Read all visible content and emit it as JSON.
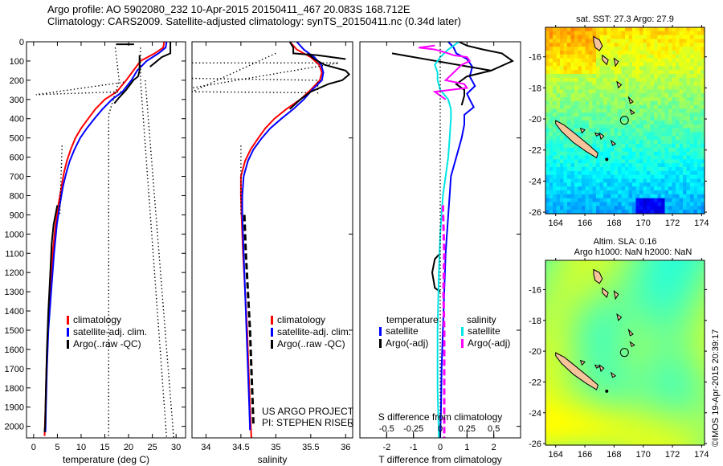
{
  "header": {
    "line1": "Argo profile: AO 5902080_232 10-Apr-2015 20150411_467 20.083S 168.712E",
    "line2": "Climatology: CARS2009. Satellite-adjusted climatology: synTS_20150411.nc (0.34d later)"
  },
  "colors": {
    "climatology": "#ff0000",
    "satellite": "#0000ff",
    "argo": "#000000",
    "sal_satellite": "#00e5e5",
    "sal_argo": "#ff00ff",
    "land": "#f5c49b"
  },
  "chart_data": [
    {
      "id": "temperature",
      "type": "line",
      "xlabel": "temperature (deg C)",
      "ylabel": "",
      "xlim": [
        -1.5,
        32
      ],
      "ylim": [
        2060,
        0
      ],
      "xticks": [
        0,
        5,
        10,
        15,
        20,
        25,
        30
      ],
      "yticks": [
        0,
        100,
        200,
        300,
        400,
        500,
        600,
        700,
        800,
        900,
        1000,
        1100,
        1200,
        1300,
        1400,
        1500,
        1600,
        1700,
        1800,
        1900,
        2000
      ],
      "legend": {
        "placement": "center",
        "entries": [
          "climatology",
          "satellite-adj. clim.",
          "Argo(..raw -QC)"
        ]
      },
      "series": [
        {
          "name": "climatology",
          "style": "solid",
          "color": "#ff0000",
          "depth": [
            0,
            30,
            60,
            100,
            150,
            200,
            260,
            300,
            350,
            400,
            450,
            500,
            560,
            620,
            680,
            750,
            850,
            950,
            1100,
            1300,
            1500,
            1700,
            1900,
            2050
          ],
          "value": [
            27.5,
            27.3,
            25.5,
            22.5,
            21.0,
            19.5,
            17.5,
            15.0,
            13.0,
            11.5,
            10.0,
            8.8,
            7.8,
            7.0,
            6.4,
            5.9,
            5.2,
            4.6,
            4.0,
            3.4,
            3.0,
            2.7,
            2.5,
            2.3
          ]
        },
        {
          "name": "satellite-adj. clim.",
          "style": "solid",
          "color": "#0000ff",
          "depth": [
            0,
            30,
            60,
            100,
            150,
            200,
            260,
            300,
            350,
            400,
            450,
            500,
            560,
            620,
            680,
            750,
            850,
            950,
            1100,
            1300,
            1500,
            1700,
            1900,
            2030
          ],
          "value": [
            28.0,
            27.8,
            26.3,
            23.8,
            21.8,
            20.6,
            18.7,
            16.5,
            14.5,
            12.8,
            11.2,
            9.8,
            8.6,
            7.6,
            6.9,
            6.2,
            5.5,
            4.9,
            4.3,
            3.7,
            3.1,
            2.8,
            2.6,
            2.5
          ]
        },
        {
          "name": "Argo(..raw -QC)",
          "style": "solid",
          "color": "#000000",
          "depth": [
            0,
            60,
            80,
            110,
            130
          ],
          "value": [
            28.8,
            28.8,
            27.0,
            25.5,
            24.5
          ]
        },
        {
          "name": "Argo(..raw -QC) upper",
          "style": "solid",
          "color": "#000000",
          "depth": [
            10,
            13,
            13,
            10
          ],
          "value": [
            17.5,
            17.5,
            21.0,
            21.0
          ]
        },
        {
          "name": "Argo(..raw -QC) 100-200",
          "style": "solid",
          "color": "#000000",
          "depth": [
            70,
            150,
            180,
            200,
            250,
            290,
            320
          ],
          "value": [
            22.3,
            22.3,
            22.0,
            21.0,
            19.5,
            18.0,
            17.0
          ]
        },
        {
          "name": "Argo(..raw -QC) deep",
          "style": "solid",
          "color": "#000000",
          "depth": [
            850,
            950,
            1050,
            1200,
            1400,
            1600,
            1800,
            2000,
            2030
          ],
          "value": [
            5.0,
            4.2,
            3.8,
            3.5,
            3.1,
            2.8,
            2.6,
            2.4,
            2.3
          ]
        },
        {
          "name": "Argo dotted a",
          "style": "dotted",
          "color": "#000000",
          "depth": [
            30,
            200,
            380,
            2060
          ],
          "value": [
            17.2,
            18.0,
            15.8,
            15.8
          ]
        },
        {
          "name": "Argo dotted b",
          "style": "dotted",
          "color": "#000000",
          "depth": [
            30,
            200,
            2060
          ],
          "value": [
            22.5,
            22.5,
            28.0
          ]
        },
        {
          "name": "Argo dotted c",
          "style": "dotted",
          "color": "#000000",
          "depth": [
            200,
            2060
          ],
          "value": [
            23.5,
            29.5
          ]
        },
        {
          "name": "Argo dotted spike",
          "style": "dotted",
          "color": "#000000",
          "depth": [
            210,
            275,
            260
          ],
          "value": [
            19.0,
            0.5,
            18.5
          ]
        },
        {
          "name": "Argo dotted mid",
          "style": "dotted",
          "color": "#000000",
          "depth": [
            540,
            900
          ],
          "value": [
            6.0,
            5.5
          ]
        }
      ]
    },
    {
      "id": "salinity",
      "type": "line",
      "xlabel": "salinity",
      "ylabel": "",
      "xlim": [
        33.8,
        36.1
      ],
      "ylim": [
        2060,
        0
      ],
      "xticks": [
        34,
        34.5,
        35,
        35.5,
        36
      ],
      "xtick_labels": [
        "34",
        "34.5",
        "35",
        "35.5",
        "36"
      ],
      "legend": {
        "placement": "center",
        "entries": [
          "climatology",
          "satellite-adj. clim.",
          "Argo(..raw -QC)"
        ]
      },
      "annotation": [
        "US ARGO PROJECT",
        "PI: STEPHEN RISER"
      ],
      "series": [
        {
          "name": "climatology",
          "style": "solid",
          "color": "#ff0000",
          "depth": [
            0,
            40,
            80,
            120,
            160,
            200,
            250,
            300,
            350,
            400,
            450,
            500,
            560,
            620,
            700,
            800,
            900,
            1100,
            1300,
            1500,
            1700,
            1900,
            2060
          ],
          "value": [
            35.2,
            35.3,
            35.5,
            35.62,
            35.66,
            35.63,
            35.5,
            35.35,
            35.15,
            34.98,
            34.85,
            34.75,
            34.64,
            34.56,
            34.5,
            34.5,
            34.51,
            34.53,
            34.56,
            34.59,
            34.61,
            34.63,
            34.65
          ]
        },
        {
          "name": "satellite-adj. clim.",
          "style": "solid",
          "color": "#0000ff",
          "depth": [
            0,
            40,
            80,
            120,
            160,
            200,
            250,
            300,
            350,
            400,
            450,
            500,
            560,
            620,
            700,
            800,
            900,
            1100,
            1300,
            1500,
            1700,
            1900,
            2020
          ],
          "value": [
            35.3,
            35.4,
            35.55,
            35.65,
            35.68,
            35.66,
            35.52,
            35.4,
            35.25,
            35.08,
            34.92,
            34.8,
            34.68,
            34.6,
            34.54,
            34.52,
            34.52,
            34.54,
            34.56,
            34.58,
            34.6,
            34.62,
            34.63
          ]
        },
        {
          "name": "Argo(..raw -QC) top",
          "style": "solid",
          "color": "#000000",
          "depth": [
            0,
            30,
            60,
            70,
            90
          ],
          "value": [
            35.2,
            35.25,
            35.25,
            35.6,
            36.0
          ]
        },
        {
          "name": "Argo(..raw -QC) 100-260",
          "style": "solid",
          "color": "#000000",
          "depth": [
            60,
            90,
            120,
            150,
            170,
            200,
            220,
            260,
            300,
            350
          ],
          "value": [
            35.45,
            35.55,
            35.7,
            36.0,
            36.05,
            35.95,
            35.75,
            35.5,
            35.35,
            35.2
          ]
        },
        {
          "name": "Argo(..raw -QC) deep",
          "style": "dashed",
          "color": "#000000",
          "depth": [
            900,
            1100,
            1300,
            1500,
            1700,
            1900,
            2000
          ],
          "value": [
            34.55,
            34.57,
            34.6,
            34.63,
            34.65,
            34.67,
            34.68
          ]
        },
        {
          "name": "Argo dotted a",
          "style": "dotted",
          "color": "#000000",
          "depth": [
            110,
            110,
            240
          ],
          "value": [
            33.8,
            35.9,
            33.8
          ]
        },
        {
          "name": "Argo dotted b",
          "style": "dotted",
          "color": "#000000",
          "depth": [
            60,
            260,
            265
          ],
          "value": [
            35.0,
            33.8,
            35.5
          ]
        },
        {
          "name": "Argo dotted c",
          "style": "dotted",
          "color": "#000000",
          "depth": [
            190,
            200,
            270
          ],
          "value": [
            33.8,
            35.6,
            35.6
          ]
        },
        {
          "name": "Argo dotted mid",
          "style": "dotted",
          "color": "#000000",
          "depth": [
            540,
            900
          ],
          "value": [
            34.5,
            34.5
          ]
        }
      ]
    },
    {
      "id": "difference",
      "type": "line",
      "xlabel": "T difference from climatology",
      "xlabel_top": "S difference from climatology",
      "xlim": [
        -3,
        3
      ],
      "ylim": [
        2060,
        0
      ],
      "xticks": [
        -2,
        -1,
        0,
        1,
        2
      ],
      "xticks_S": [
        -0.5,
        -0.25,
        0,
        0.25,
        0.5
      ],
      "xtick_labels_S": [
        "-0.5",
        "-0.25",
        "0",
        "0.25",
        "0.5"
      ],
      "legend": {
        "placement": "lower-center",
        "temperature_header": "temperature",
        "salinity_header": "salinity",
        "entries": [
          "satellite",
          "Argo(-adj)",
          "satellite",
          "Argo(-adj)"
        ]
      },
      "series": [
        {
          "name": "T satellite",
          "style": "solid",
          "color": "#0000ff",
          "depth": [
            0,
            30,
            60,
            90,
            130,
            180,
            230,
            270,
            300,
            340,
            380,
            430,
            500,
            600,
            700,
            800,
            900,
            1100,
            1300,
            1500,
            1700,
            1900,
            2060
          ],
          "value": [
            0.3,
            0.5,
            0.6,
            1.0,
            1.2,
            1.1,
            1.3,
            1.0,
            1.1,
            1.25,
            0.9,
            0.9,
            0.8,
            0.6,
            0.4,
            0.35,
            0.3,
            0.2,
            0.15,
            0.1,
            0.05,
            0.03,
            0.0
          ]
        },
        {
          "name": "T Argo",
          "style": "solid",
          "color": "#000000",
          "depth": [
            0,
            20,
            40,
            60,
            80,
            100,
            150,
            180,
            220,
            250,
            280,
            330
          ],
          "value": [
            0.7,
            1.0,
            1.6,
            2.3,
            2.5,
            2.7,
            1.9,
            1.0,
            0.6,
            0.9,
            0.9,
            0.8
          ]
        },
        {
          "name": "T Argo slope",
          "style": "solid",
          "color": "#000000",
          "depth": [
            60,
            150
          ],
          "value": [
            -1.8,
            1.9
          ]
        },
        {
          "name": "T Argo deep",
          "style": "solid",
          "color": "#000000",
          "depth": [
            1100,
            1130,
            1200,
            1280,
            1300
          ],
          "value": [
            0.0,
            -0.2,
            -0.3,
            -0.2,
            0.0
          ]
        },
        {
          "name": "S satellite",
          "style": "solid",
          "color": "#00e5e5",
          "depth": [
            0,
            40,
            80,
            120,
            160,
            200,
            250,
            300,
            350,
            400,
            500,
            600,
            700,
            800,
            1000,
            1200,
            1500,
            1800,
            2060
          ],
          "value": [
            0.7,
            0.3,
            0.0,
            -0.2,
            -0.1,
            -0.1,
            0.0,
            0.3,
            0.4,
            0.4,
            0.35,
            0.3,
            0.2,
            0.1,
            0.0,
            -0.05,
            -0.1,
            -0.1,
            -0.05
          ]
        },
        {
          "name": "S Argo",
          "style": "solid",
          "color": "#ff00ff",
          "depth": [
            20,
            30,
            40,
            60,
            70,
            80,
            100,
            120,
            200,
            220,
            240,
            260,
            300
          ],
          "value": [
            -0.2,
            -0.8,
            -0.2,
            0.3,
            0.5,
            1.0,
            1.1,
            0.8,
            0.2,
            0.9,
            1.0,
            -0.2,
            0.2
          ]
        },
        {
          "name": "S Argo deep",
          "style": "dashed",
          "color": "#ff00ff",
          "depth": [
            850,
            1100,
            1300,
            1500,
            1800,
            2060
          ],
          "value": [
            0.1,
            0.15,
            0.12,
            0.15,
            0.15,
            0.15
          ]
        },
        {
          "name": "zero line",
          "style": "dotted",
          "color": "#000000",
          "depth": [
            0,
            2060
          ],
          "value": [
            0.0,
            0.0
          ]
        }
      ]
    },
    {
      "id": "sst-map",
      "type": "heatmap",
      "title": "sat. SST: 27.3 Argo: 27.9",
      "xlim": [
        163.3,
        174.2
      ],
      "ylim": [
        -26.1,
        -14.1
      ],
      "xticks": [
        164,
        166,
        168,
        170,
        172,
        174
      ],
      "yticks": [
        -16,
        -18,
        -20,
        -22,
        -24,
        -26
      ],
      "argo_position": {
        "lon": 168.712,
        "lat": -20.083
      },
      "colormap": "jet"
    },
    {
      "id": "sla-map",
      "type": "heatmap",
      "title": "Altim. SLA: 0.16",
      "subtitle": "Argo h1000: NaN h2000: NaN",
      "xlim": [
        163.3,
        174.2
      ],
      "ylim": [
        -26.1,
        -14.1
      ],
      "xticks": [
        164,
        166,
        168,
        170,
        172,
        174
      ],
      "yticks": [
        -16,
        -18,
        -20,
        -22,
        -24,
        -26
      ],
      "argo_position": {
        "lon": 168.712,
        "lat": -20.083
      },
      "colormap": "jet"
    }
  ],
  "footer": {
    "credit": "©IMOS 19-Apr-2015 20:39:17"
  }
}
